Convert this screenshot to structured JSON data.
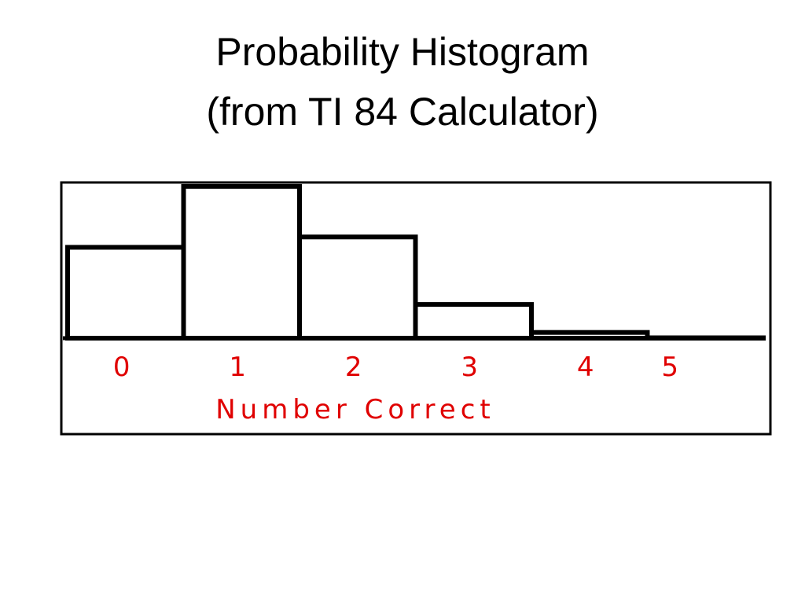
{
  "slide": {
    "title_line1": "Probability Histogram",
    "title_line2": "(from TI 84 Calculator)"
  },
  "chart_data": {
    "type": "bar",
    "title": "",
    "xlabel": "Number Correct",
    "ylabel": "",
    "categories": [
      "0",
      "1",
      "2",
      "3",
      "4",
      "5"
    ],
    "values": [
      0.237,
      0.396,
      0.264,
      0.088,
      0.015,
      0.001
    ],
    "ylim": [
      0,
      0.4
    ],
    "grid": false,
    "legend": "none",
    "bar_fill": "#ffffff",
    "bar_stroke": "#000000",
    "label_color": "#e00000",
    "frame_color": "#000000"
  }
}
